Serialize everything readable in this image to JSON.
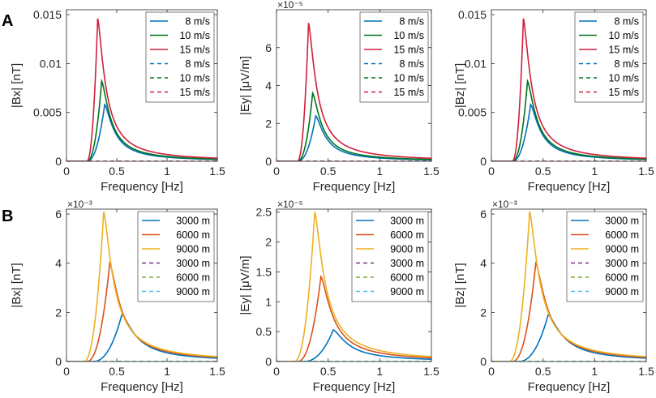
{
  "figure": {
    "row_labels": [
      "A",
      "B"
    ],
    "background": "#ffffff",
    "axis_color": "#262626"
  },
  "chart_data": [
    {
      "id": "A1",
      "type": "line",
      "row": "A",
      "xlabel": "Frequency [Hz]",
      "ylabel": "|Bx| [nT]",
      "exponent": "",
      "xlim": [
        0,
        1.5
      ],
      "ylim": [
        0,
        0.0155
      ],
      "xticks": [
        0,
        0.5,
        1,
        1.5
      ],
      "xtick_labels": [
        "0",
        "0.5",
        "1",
        "1.5"
      ],
      "yticks": [
        0,
        0.005,
        0.01,
        0.015
      ],
      "ytick_labels": [
        "0",
        "0.005",
        "0.01",
        "0.015"
      ],
      "series": [
        {
          "name": "8 m/s",
          "color": "#0072BD",
          "dash": false,
          "peak_f": 0.38,
          "peak_v": 0.0058,
          "onset": 0.2,
          "tail_k": 0.7
        },
        {
          "name": "10 m/s",
          "color": "#00741A",
          "dash": false,
          "peak_f": 0.35,
          "peak_v": 0.0082,
          "onset": 0.2,
          "tail_k": 0.7
        },
        {
          "name": "15 m/s",
          "color": "#D01F3C",
          "dash": false,
          "peak_f": 0.31,
          "peak_v": 0.0146,
          "onset": 0.2,
          "tail_k": 0.7
        },
        {
          "name": "8 m/s",
          "color": "#0072BD",
          "dash": true,
          "peak_f": 0,
          "peak_v": 0,
          "onset": 0,
          "tail_k": 0
        },
        {
          "name": "10 m/s",
          "color": "#00741A",
          "dash": true,
          "peak_f": 0,
          "peak_v": 0,
          "onset": 0,
          "tail_k": 0
        },
        {
          "name": "15 m/s",
          "color": "#D01F3C",
          "dash": true,
          "peak_f": 0,
          "peak_v": 0,
          "onset": 0,
          "tail_k": 0
        }
      ]
    },
    {
      "id": "A2",
      "type": "line",
      "row": "A",
      "xlabel": "Frequency [Hz]",
      "ylabel": "|Ey| [μV/m]",
      "exponent": "×10⁻⁵",
      "xlim": [
        0,
        1.5
      ],
      "ylim": [
        0,
        8
      ],
      "xticks": [
        0,
        0.5,
        1,
        1.5
      ],
      "xtick_labels": [
        "0",
        "0.5",
        "1",
        "1.5"
      ],
      "yticks": [
        0,
        2,
        4,
        6
      ],
      "ytick_labels": [
        "0",
        "2",
        "4",
        "6"
      ],
      "series": [
        {
          "name": "8 m/s",
          "color": "#0072BD",
          "dash": false,
          "peak_f": 0.38,
          "peak_v": 2.4,
          "onset": 0.2,
          "tail_k": 0.7
        },
        {
          "name": "10 m/s",
          "color": "#00741A",
          "dash": false,
          "peak_f": 0.35,
          "peak_v": 3.6,
          "onset": 0.2,
          "tail_k": 0.7
        },
        {
          "name": "15 m/s",
          "color": "#D01F3C",
          "dash": false,
          "peak_f": 0.31,
          "peak_v": 7.3,
          "onset": 0.2,
          "tail_k": 0.7
        },
        {
          "name": "8 m/s",
          "color": "#0072BD",
          "dash": true,
          "peak_f": 0,
          "peak_v": 0,
          "onset": 0,
          "tail_k": 0
        },
        {
          "name": "10 m/s",
          "color": "#00741A",
          "dash": true,
          "peak_f": 0,
          "peak_v": 0,
          "onset": 0,
          "tail_k": 0
        },
        {
          "name": "15 m/s",
          "color": "#D01F3C",
          "dash": true,
          "peak_f": 0,
          "peak_v": 0,
          "onset": 0,
          "tail_k": 0
        }
      ]
    },
    {
      "id": "A3",
      "type": "line",
      "row": "A",
      "xlabel": "Frequency [Hz]",
      "ylabel": "|Bz| [nT]",
      "exponent": "",
      "xlim": [
        0,
        1.5
      ],
      "ylim": [
        0,
        0.0155
      ],
      "xticks": [
        0,
        0.5,
        1,
        1.5
      ],
      "xtick_labels": [
        "0",
        "0.5",
        "1",
        "1.5"
      ],
      "yticks": [
        0,
        0.005,
        0.01,
        0.015
      ],
      "ytick_labels": [
        "0",
        "0.005",
        "0.01",
        "0.015"
      ],
      "series": [
        {
          "name": "8 m/s",
          "color": "#0072BD",
          "dash": false,
          "peak_f": 0.38,
          "peak_v": 0.0058,
          "onset": 0.2,
          "tail_k": 0.7
        },
        {
          "name": "10 m/s",
          "color": "#00741A",
          "dash": false,
          "peak_f": 0.35,
          "peak_v": 0.0082,
          "onset": 0.2,
          "tail_k": 0.7
        },
        {
          "name": "15 m/s",
          "color": "#D01F3C",
          "dash": false,
          "peak_f": 0.31,
          "peak_v": 0.0146,
          "onset": 0.2,
          "tail_k": 0.7
        },
        {
          "name": "8 m/s",
          "color": "#0072BD",
          "dash": true,
          "peak_f": 0,
          "peak_v": 0,
          "onset": 0,
          "tail_k": 0
        },
        {
          "name": "10 m/s",
          "color": "#00741A",
          "dash": true,
          "peak_f": 0,
          "peak_v": 0,
          "onset": 0,
          "tail_k": 0
        },
        {
          "name": "15 m/s",
          "color": "#D01F3C",
          "dash": true,
          "peak_f": 0,
          "peak_v": 0,
          "onset": 0,
          "tail_k": 0
        }
      ]
    },
    {
      "id": "B1",
      "type": "line",
      "row": "B",
      "xlabel": "Frequency [Hz]",
      "ylabel": "|Bx| [nT]",
      "exponent": "×10⁻³",
      "xlim": [
        0,
        1.5
      ],
      "ylim": [
        0,
        6.2
      ],
      "xticks": [
        0,
        0.5,
        1,
        1.5
      ],
      "xtick_labels": [
        "0",
        "0.5",
        "1",
        "1.5"
      ],
      "yticks": [
        0,
        2,
        4,
        6
      ],
      "ytick_labels": [
        "0",
        "2",
        "4",
        "6"
      ],
      "series": [
        {
          "name": "3000 m",
          "color": "#0072BD",
          "dash": false,
          "peak_f": 0.55,
          "peak_v": 1.9,
          "onset": 0.26,
          "tail_k": 0.65
        },
        {
          "name": "6000 m",
          "color": "#D95319",
          "dash": false,
          "peak_f": 0.43,
          "peak_v": 4.0,
          "onset": 0.2,
          "tail_k": 0.65
        },
        {
          "name": "9000 m",
          "color": "#EDB120",
          "dash": false,
          "peak_f": 0.37,
          "peak_v": 6.1,
          "onset": 0.17,
          "tail_k": 0.65
        },
        {
          "name": "3000 m",
          "color": "#7E2F8E",
          "dash": true,
          "peak_f": 0,
          "peak_v": 0,
          "onset": 0,
          "tail_k": 0
        },
        {
          "name": "6000 m",
          "color": "#77AC30",
          "dash": true,
          "peak_f": 0,
          "peak_v": 0,
          "onset": 0,
          "tail_k": 0
        },
        {
          "name": "9000 m",
          "color": "#4DBEEE",
          "dash": true,
          "peak_f": 0,
          "peak_v": 0,
          "onset": 0,
          "tail_k": 0
        }
      ]
    },
    {
      "id": "B2",
      "type": "line",
      "row": "B",
      "xlabel": "Frequency [Hz]",
      "ylabel": "|Ey| [μV/m]",
      "exponent": "×10⁻⁵",
      "xlim": [
        0,
        1.5
      ],
      "ylim": [
        0,
        2.55
      ],
      "xticks": [
        0,
        0.5,
        1,
        1.5
      ],
      "xtick_labels": [
        "0",
        "0.5",
        "1",
        "1.5"
      ],
      "yticks": [
        0,
        0.5,
        1,
        1.5,
        2,
        2.5
      ],
      "ytick_labels": [
        "0",
        "0.5",
        "1",
        "1.5",
        "2",
        "2.5"
      ],
      "series": [
        {
          "name": "3000 m",
          "color": "#0072BD",
          "dash": false,
          "peak_f": 0.55,
          "peak_v": 0.53,
          "onset": 0.26,
          "tail_k": 0.65
        },
        {
          "name": "6000 m",
          "color": "#D95319",
          "dash": false,
          "peak_f": 0.43,
          "peak_v": 1.42,
          "onset": 0.2,
          "tail_k": 0.65
        },
        {
          "name": "9000 m",
          "color": "#EDB120",
          "dash": false,
          "peak_f": 0.37,
          "peak_v": 2.5,
          "onset": 0.17,
          "tail_k": 0.65
        },
        {
          "name": "3000 m",
          "color": "#7E2F8E",
          "dash": true,
          "peak_f": 0,
          "peak_v": 0,
          "onset": 0,
          "tail_k": 0
        },
        {
          "name": "6000 m",
          "color": "#77AC30",
          "dash": true,
          "peak_f": 0,
          "peak_v": 0,
          "onset": 0,
          "tail_k": 0
        },
        {
          "name": "9000 m",
          "color": "#4DBEEE",
          "dash": true,
          "peak_f": 0,
          "peak_v": 0,
          "onset": 0,
          "tail_k": 0
        }
      ]
    },
    {
      "id": "B3",
      "type": "line",
      "row": "B",
      "xlabel": "Frequency [Hz]",
      "ylabel": "|Bz| [nT]",
      "exponent": "×10⁻³",
      "xlim": [
        0,
        1.5
      ],
      "ylim": [
        0,
        6.2
      ],
      "xticks": [
        0,
        0.5,
        1,
        1.5
      ],
      "xtick_labels": [
        "0",
        "0.5",
        "1",
        "1.5"
      ],
      "yticks": [
        0,
        2,
        4,
        6
      ],
      "ytick_labels": [
        "0",
        "2",
        "4",
        "6"
      ],
      "series": [
        {
          "name": "3000 m",
          "color": "#0072BD",
          "dash": false,
          "peak_f": 0.55,
          "peak_v": 1.9,
          "onset": 0.26,
          "tail_k": 0.65
        },
        {
          "name": "6000 m",
          "color": "#D95319",
          "dash": false,
          "peak_f": 0.43,
          "peak_v": 4.0,
          "onset": 0.2,
          "tail_k": 0.65
        },
        {
          "name": "9000 m",
          "color": "#EDB120",
          "dash": false,
          "peak_f": 0.37,
          "peak_v": 6.1,
          "onset": 0.17,
          "tail_k": 0.65
        },
        {
          "name": "3000 m",
          "color": "#7E2F8E",
          "dash": true,
          "peak_f": 0,
          "peak_v": 0,
          "onset": 0,
          "tail_k": 0
        },
        {
          "name": "6000 m",
          "color": "#77AC30",
          "dash": true,
          "peak_f": 0,
          "peak_v": 0,
          "onset": 0,
          "tail_k": 0
        },
        {
          "name": "9000 m",
          "color": "#4DBEEE",
          "dash": true,
          "peak_f": 0,
          "peak_v": 0,
          "onset": 0,
          "tail_k": 0
        }
      ]
    }
  ]
}
